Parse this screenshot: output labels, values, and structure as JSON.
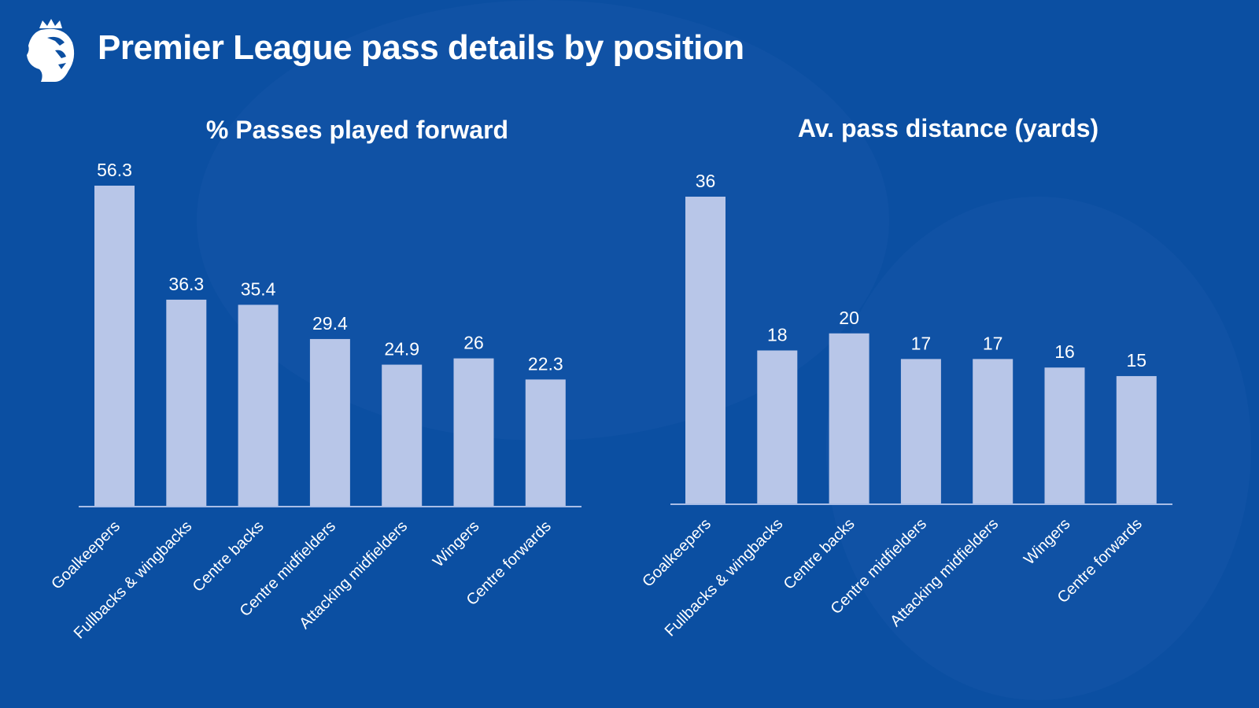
{
  "title": "Premier League pass details by position",
  "logo_text": "Premier League",
  "colors": {
    "background": "#0b4fa2",
    "bar": "#b8c6e8",
    "axis": "#a9bde6"
  },
  "chart_data": [
    {
      "type": "bar",
      "title": "% Passes played forward",
      "categories": [
        "Goalkeepers",
        "Fullbacks & wingbacks",
        "Centre backs",
        "Centre midfielders",
        "Attacking midfielders",
        "Wingers",
        "Centre forwards"
      ],
      "values": [
        56.3,
        36.3,
        35.4,
        29.4,
        24.9,
        26,
        22.3
      ],
      "labels": [
        "56.3",
        "36.3",
        "35.4",
        "29.4",
        "24.9",
        "26",
        "22.3"
      ],
      "xlabel": "",
      "ylabel": "",
      "ylim": [
        0,
        56.3
      ],
      "grid": false
    },
    {
      "type": "bar",
      "title": "Av. pass distance (yards)",
      "categories": [
        "Goalkeepers",
        "Fullbacks & wingbacks",
        "Centre backs",
        "Centre midfielders",
        "Attacking midfielders",
        "Wingers",
        "Centre forwards"
      ],
      "values": [
        36,
        18,
        20,
        17,
        17,
        16,
        15
      ],
      "labels": [
        "36",
        "18",
        "20",
        "17",
        "17",
        "16",
        "15"
      ],
      "xlabel": "",
      "ylabel": "",
      "ylim": [
        0,
        36
      ],
      "grid": false
    }
  ]
}
